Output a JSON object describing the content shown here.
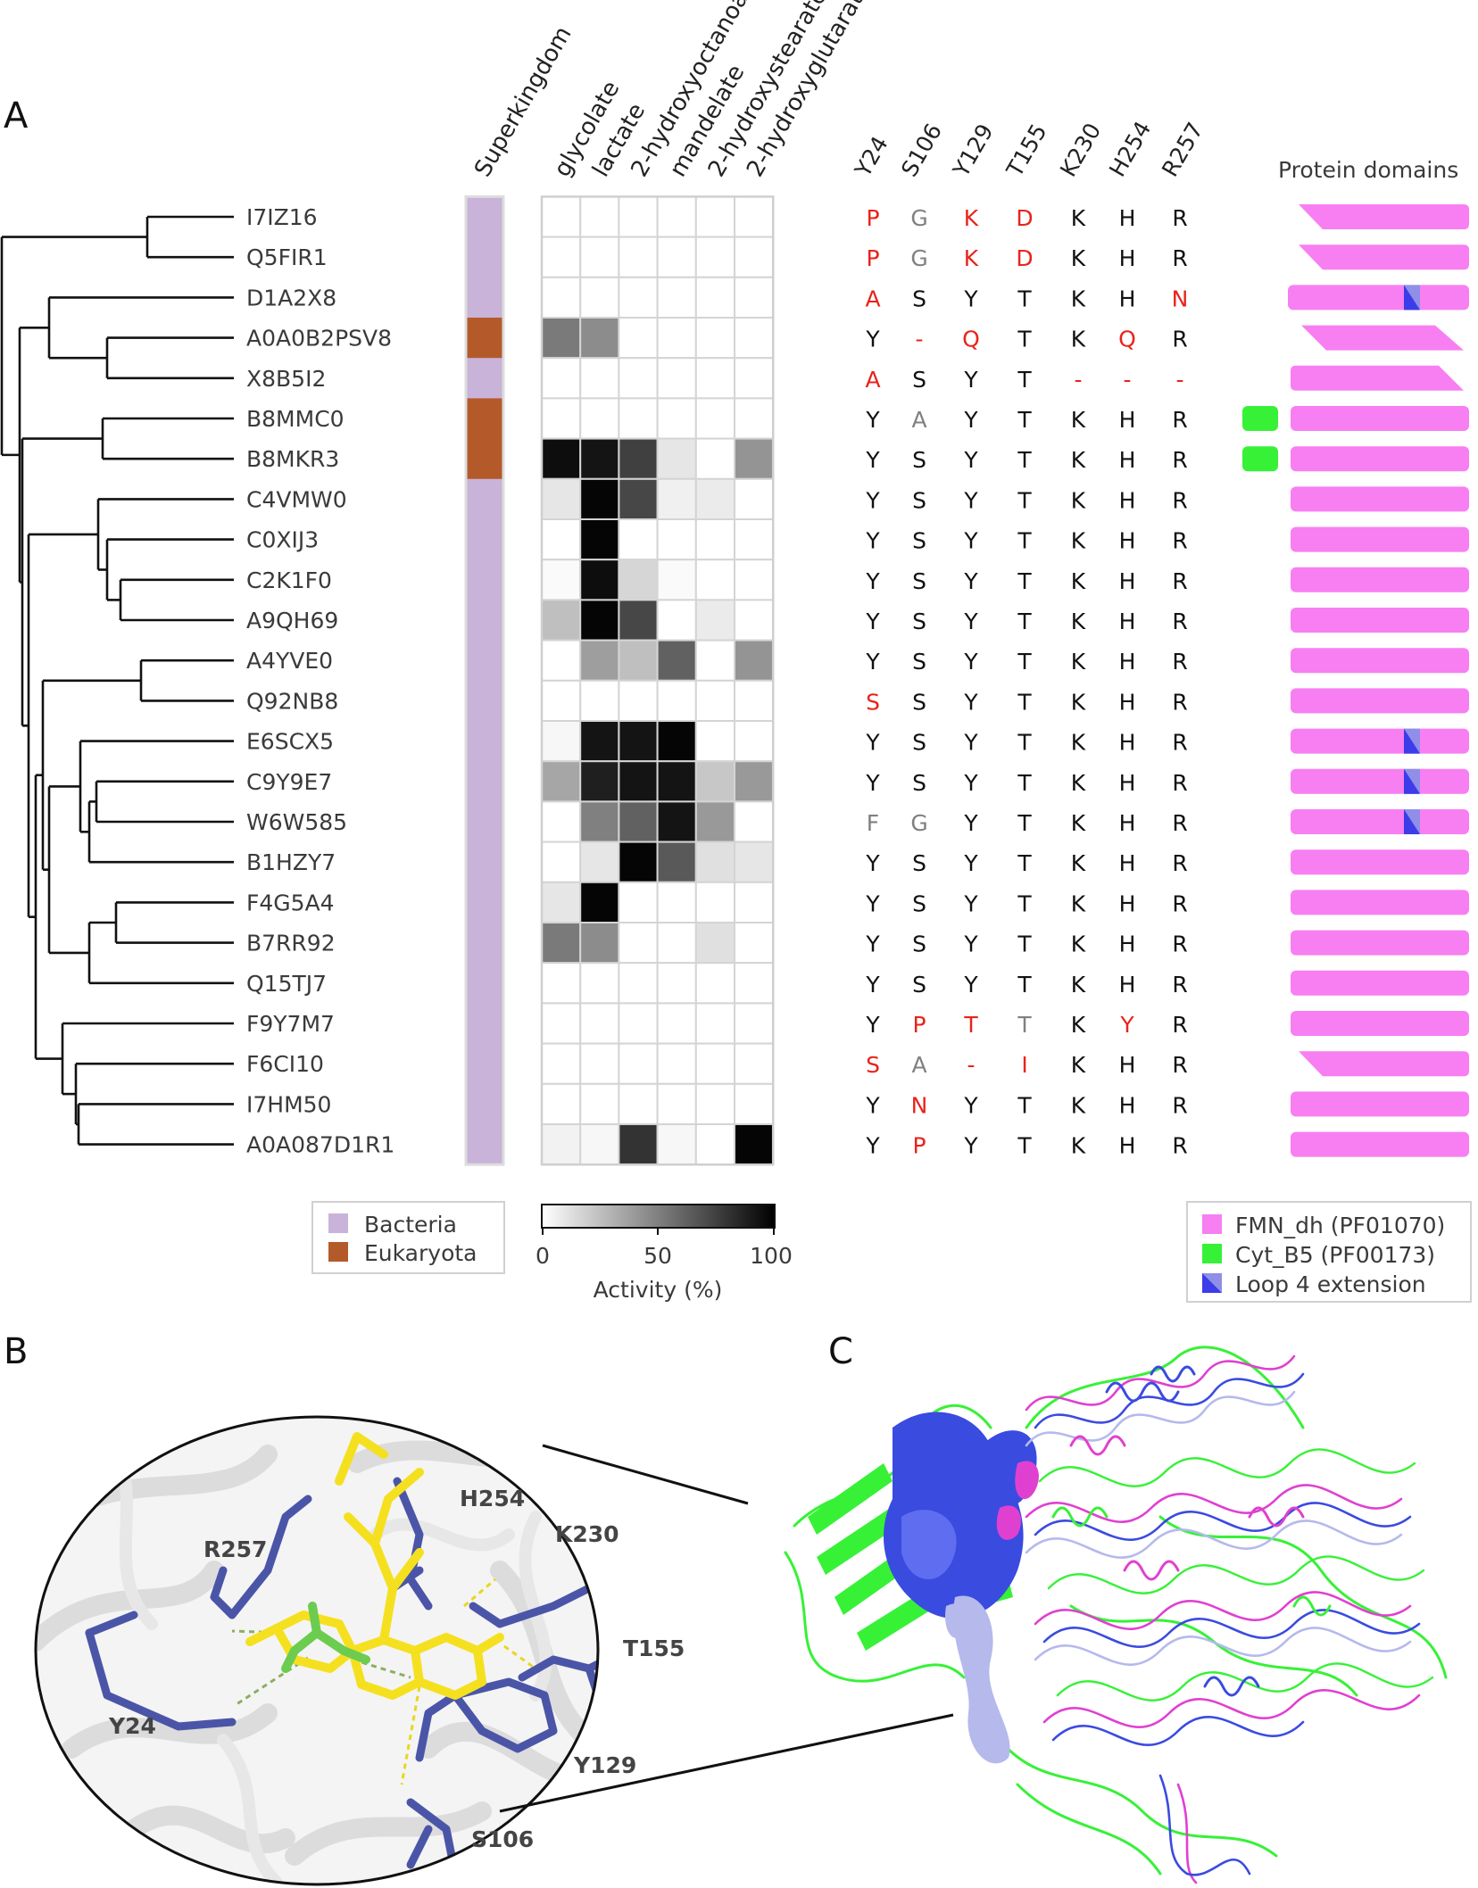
{
  "panels": {
    "a": "A",
    "b": "B",
    "c": "C"
  },
  "headers": {
    "superkingdom": "Superkingdom",
    "substrates": [
      "glycolate",
      "lactate",
      "2-hydroxyoctanoate",
      "mandelate",
      "2-hydroxystearate",
      "2-hydroxyglutarate"
    ],
    "residues": [
      "Y24",
      "S106",
      "Y129",
      "T155",
      "K230",
      "H254",
      "R257"
    ],
    "domains": "Protein domains"
  },
  "proteins": [
    {
      "id": "I7IZ16",
      "kingdom": "Bacteria",
      "activity": [
        0,
        0,
        0,
        0,
        0,
        0
      ],
      "residues": [
        "P",
        "G",
        "K",
        "D",
        "K",
        "H",
        "R"
      ],
      "residue_status": [
        "mut",
        "alt",
        "mut",
        "mut",
        "ok",
        "ok",
        "ok"
      ],
      "domain_shape": "cut-left-top",
      "loop4": false,
      "cytb5": false
    },
    {
      "id": "Q5FIR1",
      "kingdom": "Bacteria",
      "activity": [
        0,
        0,
        0,
        0,
        0,
        0
      ],
      "residues": [
        "P",
        "G",
        "K",
        "D",
        "K",
        "H",
        "R"
      ],
      "residue_status": [
        "mut",
        "alt",
        "mut",
        "mut",
        "ok",
        "ok",
        "ok"
      ],
      "domain_shape": "cut-left-top",
      "loop4": false,
      "cytb5": false
    },
    {
      "id": "D1A2X8",
      "kingdom": "Bacteria",
      "activity": [
        0,
        0,
        0,
        0,
        0,
        0
      ],
      "residues": [
        "A",
        "S",
        "Y",
        "T",
        "K",
        "H",
        "N"
      ],
      "residue_status": [
        "mut",
        "ok",
        "ok",
        "ok",
        "ok",
        "ok",
        "mut"
      ],
      "domain_shape": "full",
      "loop4": true,
      "cytb5": false
    },
    {
      "id": "A0A0B2PSV8",
      "kingdom": "Eukaryota",
      "activity": [
        52,
        45,
        0,
        0,
        0,
        0
      ],
      "residues": [
        "Y",
        "-",
        "Q",
        "T",
        "K",
        "Q",
        "R"
      ],
      "residue_status": [
        "ok",
        "mut",
        "mut",
        "ok",
        "ok",
        "mut",
        "ok"
      ],
      "domain_shape": "parallelogram",
      "loop4": false,
      "cytb5": false
    },
    {
      "id": "X8B5I2",
      "kingdom": "Bacteria",
      "activity": [
        0,
        0,
        0,
        0,
        0,
        0
      ],
      "residues": [
        "A",
        "S",
        "Y",
        "T",
        "-",
        "-",
        "-"
      ],
      "residue_status": [
        "mut",
        "ok",
        "ok",
        "ok",
        "mut",
        "mut",
        "mut"
      ],
      "domain_shape": "cut-right-bottom",
      "loop4": false,
      "cytb5": false
    },
    {
      "id": "B8MMC0",
      "kingdom": "Eukaryota",
      "activity": [
        0,
        0,
        0,
        0,
        0,
        0
      ],
      "residues": [
        "Y",
        "A",
        "Y",
        "T",
        "K",
        "H",
        "R"
      ],
      "residue_status": [
        "ok",
        "alt",
        "ok",
        "ok",
        "ok",
        "ok",
        "ok"
      ],
      "domain_shape": "full",
      "loop4": false,
      "cytb5": true
    },
    {
      "id": "B8MKR3",
      "kingdom": "Eukaryota",
      "activity": [
        95,
        92,
        75,
        10,
        0,
        42
      ],
      "residues": [
        "Y",
        "S",
        "Y",
        "T",
        "K",
        "H",
        "R"
      ],
      "residue_status": [
        "ok",
        "ok",
        "ok",
        "ok",
        "ok",
        "ok",
        "ok"
      ],
      "domain_shape": "full",
      "loop4": false,
      "cytb5": true
    },
    {
      "id": "C4VMW0",
      "kingdom": "Bacteria",
      "activity": [
        10,
        98,
        72,
        6,
        8,
        0
      ],
      "residues": [
        "Y",
        "S",
        "Y",
        "T",
        "K",
        "H",
        "R"
      ],
      "residue_status": [
        "ok",
        "ok",
        "ok",
        "ok",
        "ok",
        "ok",
        "ok"
      ],
      "domain_shape": "full",
      "loop4": false,
      "cytb5": false
    },
    {
      "id": "C0XIJ3",
      "kingdom": "Bacteria",
      "activity": [
        0,
        98,
        0,
        0,
        0,
        0
      ],
      "residues": [
        "Y",
        "S",
        "Y",
        "T",
        "K",
        "H",
        "R"
      ],
      "residue_status": [
        "ok",
        "ok",
        "ok",
        "ok",
        "ok",
        "ok",
        "ok"
      ],
      "domain_shape": "full",
      "loop4": false,
      "cytb5": false
    },
    {
      "id": "C2K1F0",
      "kingdom": "Bacteria",
      "activity": [
        2,
        95,
        16,
        2,
        0,
        0
      ],
      "residues": [
        "Y",
        "S",
        "Y",
        "T",
        "K",
        "H",
        "R"
      ],
      "residue_status": [
        "ok",
        "ok",
        "ok",
        "ok",
        "ok",
        "ok",
        "ok"
      ],
      "domain_shape": "full",
      "loop4": false,
      "cytb5": false
    },
    {
      "id": "A9QH69",
      "kingdom": "Bacteria",
      "activity": [
        25,
        98,
        72,
        0,
        8,
        0
      ],
      "residues": [
        "Y",
        "S",
        "Y",
        "T",
        "K",
        "H",
        "R"
      ],
      "residue_status": [
        "ok",
        "ok",
        "ok",
        "ok",
        "ok",
        "ok",
        "ok"
      ],
      "domain_shape": "full",
      "loop4": false,
      "cytb5": false
    },
    {
      "id": "A4YVE0",
      "kingdom": "Bacteria",
      "activity": [
        0,
        38,
        25,
        62,
        0,
        42
      ],
      "residues": [
        "Y",
        "S",
        "Y",
        "T",
        "K",
        "H",
        "R"
      ],
      "residue_status": [
        "ok",
        "ok",
        "ok",
        "ok",
        "ok",
        "ok",
        "ok"
      ],
      "domain_shape": "full",
      "loop4": false,
      "cytb5": false
    },
    {
      "id": "Q92NB8",
      "kingdom": "Bacteria",
      "activity": [
        0,
        0,
        0,
        0,
        0,
        0
      ],
      "residues": [
        "S",
        "S",
        "Y",
        "T",
        "K",
        "H",
        "R"
      ],
      "residue_status": [
        "mut",
        "ok",
        "ok",
        "ok",
        "ok",
        "ok",
        "ok"
      ],
      "domain_shape": "full",
      "loop4": false,
      "cytb5": false
    },
    {
      "id": "E6SCX5",
      "kingdom": "Bacteria",
      "activity": [
        3,
        92,
        92,
        98,
        0,
        0
      ],
      "residues": [
        "Y",
        "S",
        "Y",
        "T",
        "K",
        "H",
        "R"
      ],
      "residue_status": [
        "ok",
        "ok",
        "ok",
        "ok",
        "ok",
        "ok",
        "ok"
      ],
      "domain_shape": "full",
      "loop4": true,
      "cytb5": false
    },
    {
      "id": "C9Y9E7",
      "kingdom": "Bacteria",
      "activity": [
        35,
        88,
        92,
        92,
        22,
        40
      ],
      "residues": [
        "Y",
        "S",
        "Y",
        "T",
        "K",
        "H",
        "R"
      ],
      "residue_status": [
        "ok",
        "ok",
        "ok",
        "ok",
        "ok",
        "ok",
        "ok"
      ],
      "domain_shape": "full",
      "loop4": true,
      "cytb5": false
    },
    {
      "id": "W6W585",
      "kingdom": "Bacteria",
      "activity": [
        0,
        50,
        62,
        92,
        40,
        0
      ],
      "residues": [
        "F",
        "G",
        "Y",
        "T",
        "K",
        "H",
        "R"
      ],
      "residue_status": [
        "alt",
        "alt",
        "ok",
        "ok",
        "ok",
        "ok",
        "ok"
      ],
      "domain_shape": "full",
      "loop4": true,
      "cytb5": false
    },
    {
      "id": "B1HZY7",
      "kingdom": "Bacteria",
      "activity": [
        0,
        10,
        98,
        65,
        12,
        10
      ],
      "residues": [
        "Y",
        "S",
        "Y",
        "T",
        "K",
        "H",
        "R"
      ],
      "residue_status": [
        "ok",
        "ok",
        "ok",
        "ok",
        "ok",
        "ok",
        "ok"
      ],
      "domain_shape": "full",
      "loop4": false,
      "cytb5": false
    },
    {
      "id": "F4G5A4",
      "kingdom": "Bacteria",
      "activity": [
        10,
        98,
        0,
        0,
        0,
        0
      ],
      "residues": [
        "Y",
        "S",
        "Y",
        "T",
        "K",
        "H",
        "R"
      ],
      "residue_status": [
        "ok",
        "ok",
        "ok",
        "ok",
        "ok",
        "ok",
        "ok"
      ],
      "domain_shape": "full",
      "loop4": false,
      "cytb5": false
    },
    {
      "id": "B7RR92",
      "kingdom": "Bacteria",
      "activity": [
        52,
        45,
        0,
        0,
        12,
        0
      ],
      "residues": [
        "Y",
        "S",
        "Y",
        "T",
        "K",
        "H",
        "R"
      ],
      "residue_status": [
        "ok",
        "ok",
        "ok",
        "ok",
        "ok",
        "ok",
        "ok"
      ],
      "domain_shape": "full",
      "loop4": false,
      "cytb5": false
    },
    {
      "id": "Q15TJ7",
      "kingdom": "Bacteria",
      "activity": [
        0,
        0,
        0,
        0,
        0,
        0
      ],
      "residues": [
        "Y",
        "S",
        "Y",
        "T",
        "K",
        "H",
        "R"
      ],
      "residue_status": [
        "ok",
        "ok",
        "ok",
        "ok",
        "ok",
        "ok",
        "ok"
      ],
      "domain_shape": "full",
      "loop4": false,
      "cytb5": false
    },
    {
      "id": "F9Y7M7",
      "kingdom": "Bacteria",
      "activity": [
        0,
        0,
        0,
        0,
        0,
        0
      ],
      "residues": [
        "Y",
        "P",
        "T",
        "T",
        "K",
        "Y",
        "R"
      ],
      "residue_status": [
        "ok",
        "mut",
        "mut",
        "alt",
        "ok",
        "mut",
        "ok"
      ],
      "domain_shape": "full",
      "loop4": false,
      "cytb5": false
    },
    {
      "id": "F6CI10",
      "kingdom": "Bacteria",
      "activity": [
        0,
        0,
        0,
        0,
        0,
        0
      ],
      "residues": [
        "S",
        "A",
        "-",
        "I",
        "K",
        "H",
        "R"
      ],
      "residue_status": [
        "mut",
        "alt",
        "mut",
        "mut",
        "ok",
        "ok",
        "ok"
      ],
      "domain_shape": "cut-left-top",
      "loop4": false,
      "cytb5": false
    },
    {
      "id": "I7HM50",
      "kingdom": "Bacteria",
      "activity": [
        0,
        0,
        0,
        0,
        0,
        0
      ],
      "residues": [
        "Y",
        "N",
        "Y",
        "T",
        "K",
        "H",
        "R"
      ],
      "residue_status": [
        "ok",
        "mut",
        "ok",
        "ok",
        "ok",
        "ok",
        "ok"
      ],
      "domain_shape": "full",
      "loop4": false,
      "cytb5": false
    },
    {
      "id": "A0A087D1R1",
      "kingdom": "Bacteria",
      "activity": [
        5,
        3,
        80,
        3,
        0,
        98
      ],
      "residues": [
        "Y",
        "P",
        "Y",
        "T",
        "K",
        "H",
        "R"
      ],
      "residue_status": [
        "ok",
        "mut",
        "ok",
        "ok",
        "ok",
        "ok",
        "ok"
      ],
      "domain_shape": "full",
      "loop4": false,
      "cytb5": false
    }
  ],
  "legend_kingdom": [
    {
      "label": "Bacteria",
      "color": "#c9b3d9"
    },
    {
      "label": "Eukaryota",
      "color": "#b45a2a"
    }
  ],
  "colorbar": {
    "ticks": [
      "0",
      "50",
      "100"
    ],
    "title": "Activity (%)"
  },
  "legend_domains": [
    {
      "label": "FMN_dh (PF01070)",
      "color": "#f77ff2"
    },
    {
      "label": "Cyt_B5 (PF00173)",
      "color": "#37f137"
    },
    {
      "label": "Loop 4 extension",
      "color": "#3c3ce8"
    }
  ],
  "panel_b_labels": [
    "R257",
    "H254",
    "K230",
    "T155",
    "Y24",
    "Y129",
    "S106"
  ],
  "colors": {
    "mutant": "#e8231b",
    "alternate": "#808080",
    "conserved": "#111111",
    "fmn": "#f77ff2",
    "cytb5": "#37f137",
    "loop4": "#3c3ce8",
    "structure_blue": "#3a4be0",
    "structure_lavender": "#b5b9ec",
    "structure_magenta": "#e040d0",
    "residue_stick": "#4b55a8",
    "fmn_stick": "#f5e020",
    "ligand_stick": "#6ccc50"
  }
}
